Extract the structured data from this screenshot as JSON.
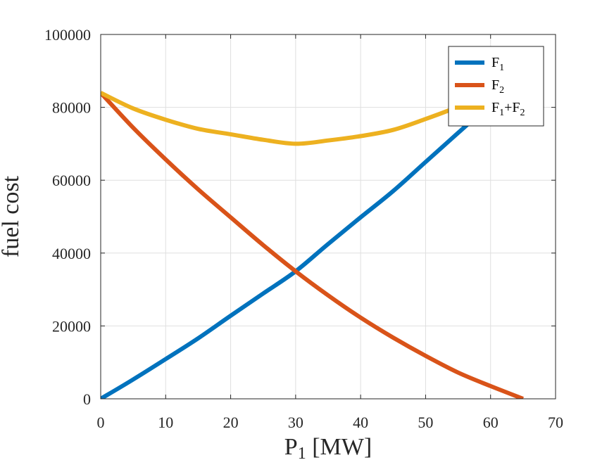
{
  "chart_data": {
    "type": "line",
    "title": "",
    "xlabel": "P",
    "xlabel_sub": "1",
    "xlabel_unit": " [MW]",
    "ylabel": "fuel cost",
    "xlim": [
      0,
      70
    ],
    "ylim": [
      0,
      100000
    ],
    "xticks": [
      0,
      10,
      20,
      30,
      40,
      50,
      60,
      70
    ],
    "yticks": [
      0,
      20000,
      40000,
      60000,
      80000,
      100000
    ],
    "xtick_labels": [
      "0",
      "10",
      "20",
      "30",
      "40",
      "50",
      "60",
      "70"
    ],
    "ytick_labels": [
      "0",
      "20000",
      "40000",
      "60000",
      "80000",
      "100000"
    ],
    "grid": true,
    "legend_position": "top-right",
    "x": [
      0,
      5,
      10,
      15,
      20,
      25,
      30,
      35,
      40,
      45,
      50,
      55,
      60,
      65
    ],
    "series": [
      {
        "name": "F",
        "name_sub": "1",
        "name_rest": "",
        "color": "#0072BD",
        "values": [
          0,
          5300,
          10900,
          16600,
          22800,
          28900,
          35000,
          42500,
          49800,
          57000,
          65000,
          73000,
          81000,
          89500
        ]
      },
      {
        "name": "F",
        "name_sub": "2",
        "name_rest": "",
        "color": "#D95319",
        "values": [
          84000,
          74400,
          65700,
          57500,
          49800,
          42200,
          35000,
          28400,
          22300,
          16800,
          11800,
          7200,
          3500,
          0
        ]
      },
      {
        "name": "F",
        "name_sub": "1",
        "name_rest": "+F",
        "name_rest_sub": "2",
        "color": "#EDB120",
        "values": [
          84000,
          79700,
          76600,
          74100,
          72600,
          71100,
          70000,
          70900,
          72100,
          73800,
          76800,
          80200,
          84500,
          89500
        ]
      }
    ]
  }
}
